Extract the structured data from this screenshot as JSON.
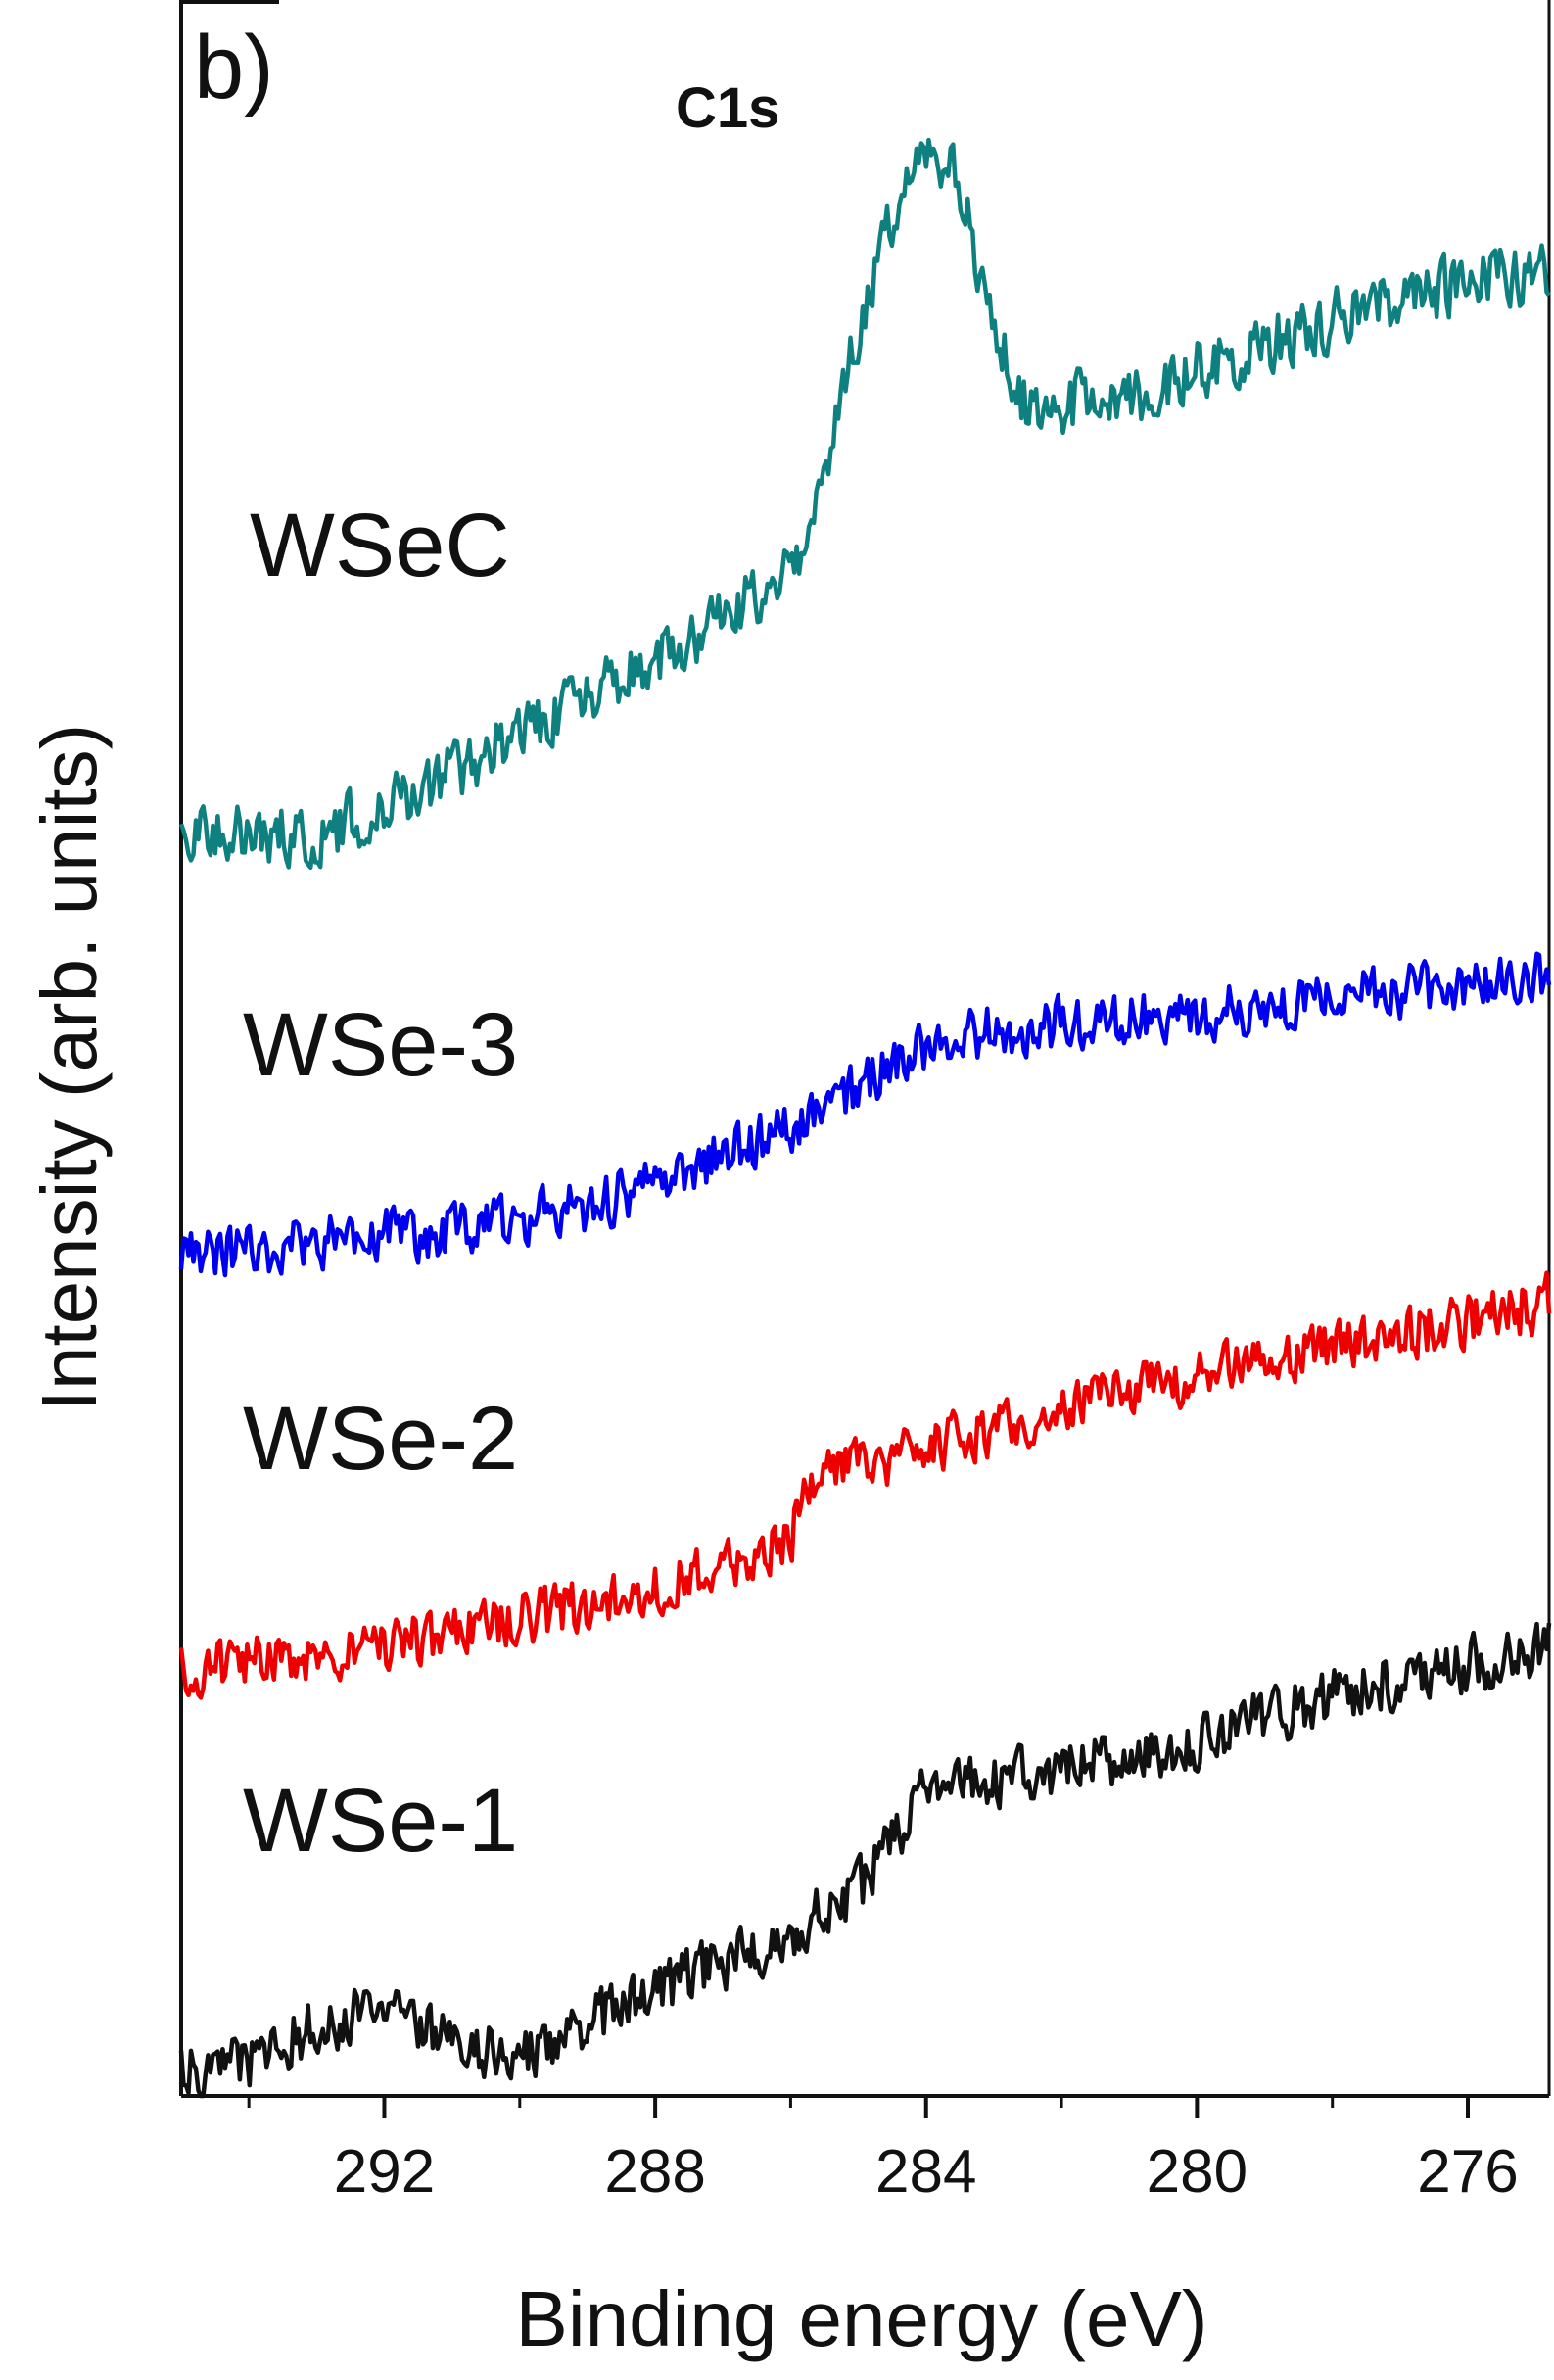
{
  "chart_data": {
    "type": "line",
    "panel_label": "b)",
    "annotation": "C1s",
    "xlabel": "Binding energy (eV)",
    "ylabel": "Intensity (arb. units)",
    "x_reversed": true,
    "xlim": [
      295,
      274.8
    ],
    "ylim": [
      0,
      1
    ],
    "x_ticks": [
      292,
      288,
      284,
      280,
      276
    ],
    "x_minor_ticks": [
      294,
      290,
      286,
      282,
      278
    ],
    "grid": false,
    "legend": "none",
    "series": [
      {
        "name": "WSeC",
        "color": "#0f8080",
        "x": [
          295,
          294,
          293,
          292,
          291,
          290,
          289,
          288,
          287,
          286,
          285.6,
          285,
          284.4,
          284,
          283.6,
          283,
          282.6,
          282,
          281,
          280,
          279,
          278,
          277,
          276,
          275,
          274.8
        ],
        "y": [
          0.607,
          0.603,
          0.6,
          0.616,
          0.632,
          0.649,
          0.667,
          0.685,
          0.704,
          0.727,
          0.759,
          0.841,
          0.908,
          0.92,
          0.916,
          0.852,
          0.806,
          0.808,
          0.81,
          0.824,
          0.836,
          0.848,
          0.858,
          0.865,
          0.87,
          0.871
        ]
      },
      {
        "name": "WSe-3",
        "color": "#0000ee",
        "x": [
          295,
          294,
          293,
          292,
          291,
          290,
          289,
          288,
          287,
          286,
          285,
          284,
          283,
          282,
          281,
          280,
          279,
          278,
          277,
          276,
          275,
          274.8
        ],
        "y": [
          0.402,
          0.404,
          0.407,
          0.41,
          0.413,
          0.419,
          0.424,
          0.435,
          0.449,
          0.462,
          0.48,
          0.502,
          0.508,
          0.512,
          0.514,
          0.516,
          0.52,
          0.523,
          0.527,
          0.53,
          0.535,
          0.536
        ]
      },
      {
        "name": "WSe-2",
        "color": "#ee0000",
        "x": [
          295,
          294,
          293,
          292,
          291,
          290,
          289,
          288,
          287,
          286,
          285.8,
          285,
          284,
          283,
          282,
          281,
          280,
          279,
          278,
          277,
          276,
          275,
          274.8
        ],
        "y": [
          0.203,
          0.207,
          0.211,
          0.216,
          0.22,
          0.228,
          0.234,
          0.243,
          0.253,
          0.263,
          0.295,
          0.3,
          0.309,
          0.318,
          0.327,
          0.337,
          0.344,
          0.35,
          0.357,
          0.364,
          0.37,
          0.377,
          0.38
        ]
      },
      {
        "name": "WSe-1",
        "color": "#111111",
        "x": [
          295,
          294,
          293,
          292,
          291,
          290,
          289,
          288,
          287,
          286,
          285,
          284,
          283,
          282,
          281,
          280,
          279,
          278,
          277,
          276,
          275,
          274.8
        ],
        "y": [
          0.012,
          0.016,
          0.034,
          0.043,
          0.027,
          0.016,
          0.034,
          0.05,
          0.063,
          0.077,
          0.098,
          0.144,
          0.15,
          0.156,
          0.162,
          0.17,
          0.18,
          0.19,
          0.199,
          0.205,
          0.212,
          0.214
        ]
      }
    ]
  }
}
